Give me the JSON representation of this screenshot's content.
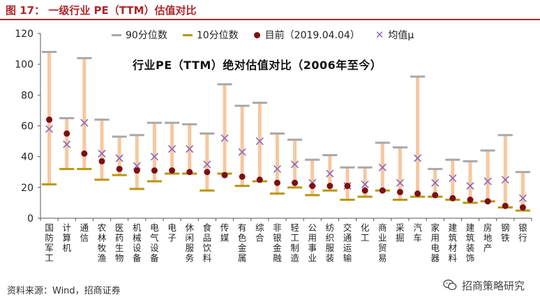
{
  "header": {
    "title": "图 17：  一级行业 PE（TTM）估值对比"
  },
  "legend": {
    "p90": "90分位数",
    "p10": "10分位数",
    "current": "目前（2019.04.04）",
    "mean": "均值μ"
  },
  "colors": {
    "p90": "#a8a8a8",
    "p10": "#b8960c",
    "current": "#7d0f14",
    "mean": "#8b6bb8",
    "range": "#f8c79f",
    "accent": "#b0272b"
  },
  "footer": {
    "source": "资料来源：Wind，招商证券"
  },
  "watermark": {
    "text": "招商策略研究"
  },
  "chart_data": {
    "type": "range",
    "title": "行业PE（TTM）绝对估值对比（2006年至今）",
    "ylim": [
      0,
      120
    ],
    "yticks": [
      0,
      20,
      40,
      60,
      80,
      100,
      120
    ],
    "categories": [
      "国防军工",
      "计算机",
      "通信",
      "农林牧渔",
      "医药生物",
      "机械设备",
      "电气设备",
      "电子",
      "休闲服务",
      "食品饮料",
      "传媒",
      "有色金属",
      "综合",
      "非银金融",
      "轻工制造",
      "公用事业",
      "纺织服装",
      "交通运输",
      "化工",
      "商业贸易",
      "采掘",
      "汽车",
      "家用电器",
      "建筑材料",
      "建筑装饰",
      "房地产",
      "钢铁",
      "银行"
    ],
    "p90": [
      108,
      65,
      104,
      64,
      53,
      54,
      62,
      62,
      61,
      55,
      87,
      73,
      75,
      55,
      51,
      38,
      41,
      33,
      33,
      49,
      46,
      92,
      32,
      38,
      37,
      44,
      54,
      30
    ],
    "p10": [
      22,
      32,
      32,
      25,
      28,
      19,
      24,
      29,
      29,
      18,
      29,
      21,
      24,
      16,
      20,
      15,
      18,
      12,
      14,
      18,
      12,
      14,
      14,
      12,
      10,
      11,
      7,
      5
    ],
    "current": [
      64,
      55,
      42,
      37,
      32,
      31,
      31,
      31,
      30,
      30,
      28,
      27,
      25,
      23,
      23,
      21,
      21,
      21,
      18,
      18,
      17,
      16,
      15,
      13,
      12,
      11,
      8,
      7
    ],
    "mean": [
      58,
      48,
      62,
      42,
      39,
      34,
      40,
      45,
      45,
      35,
      52,
      43,
      50,
      32,
      35,
      23,
      29,
      21,
      22,
      33,
      23,
      39,
      23,
      26,
      21,
      24,
      25,
      13
    ]
  }
}
